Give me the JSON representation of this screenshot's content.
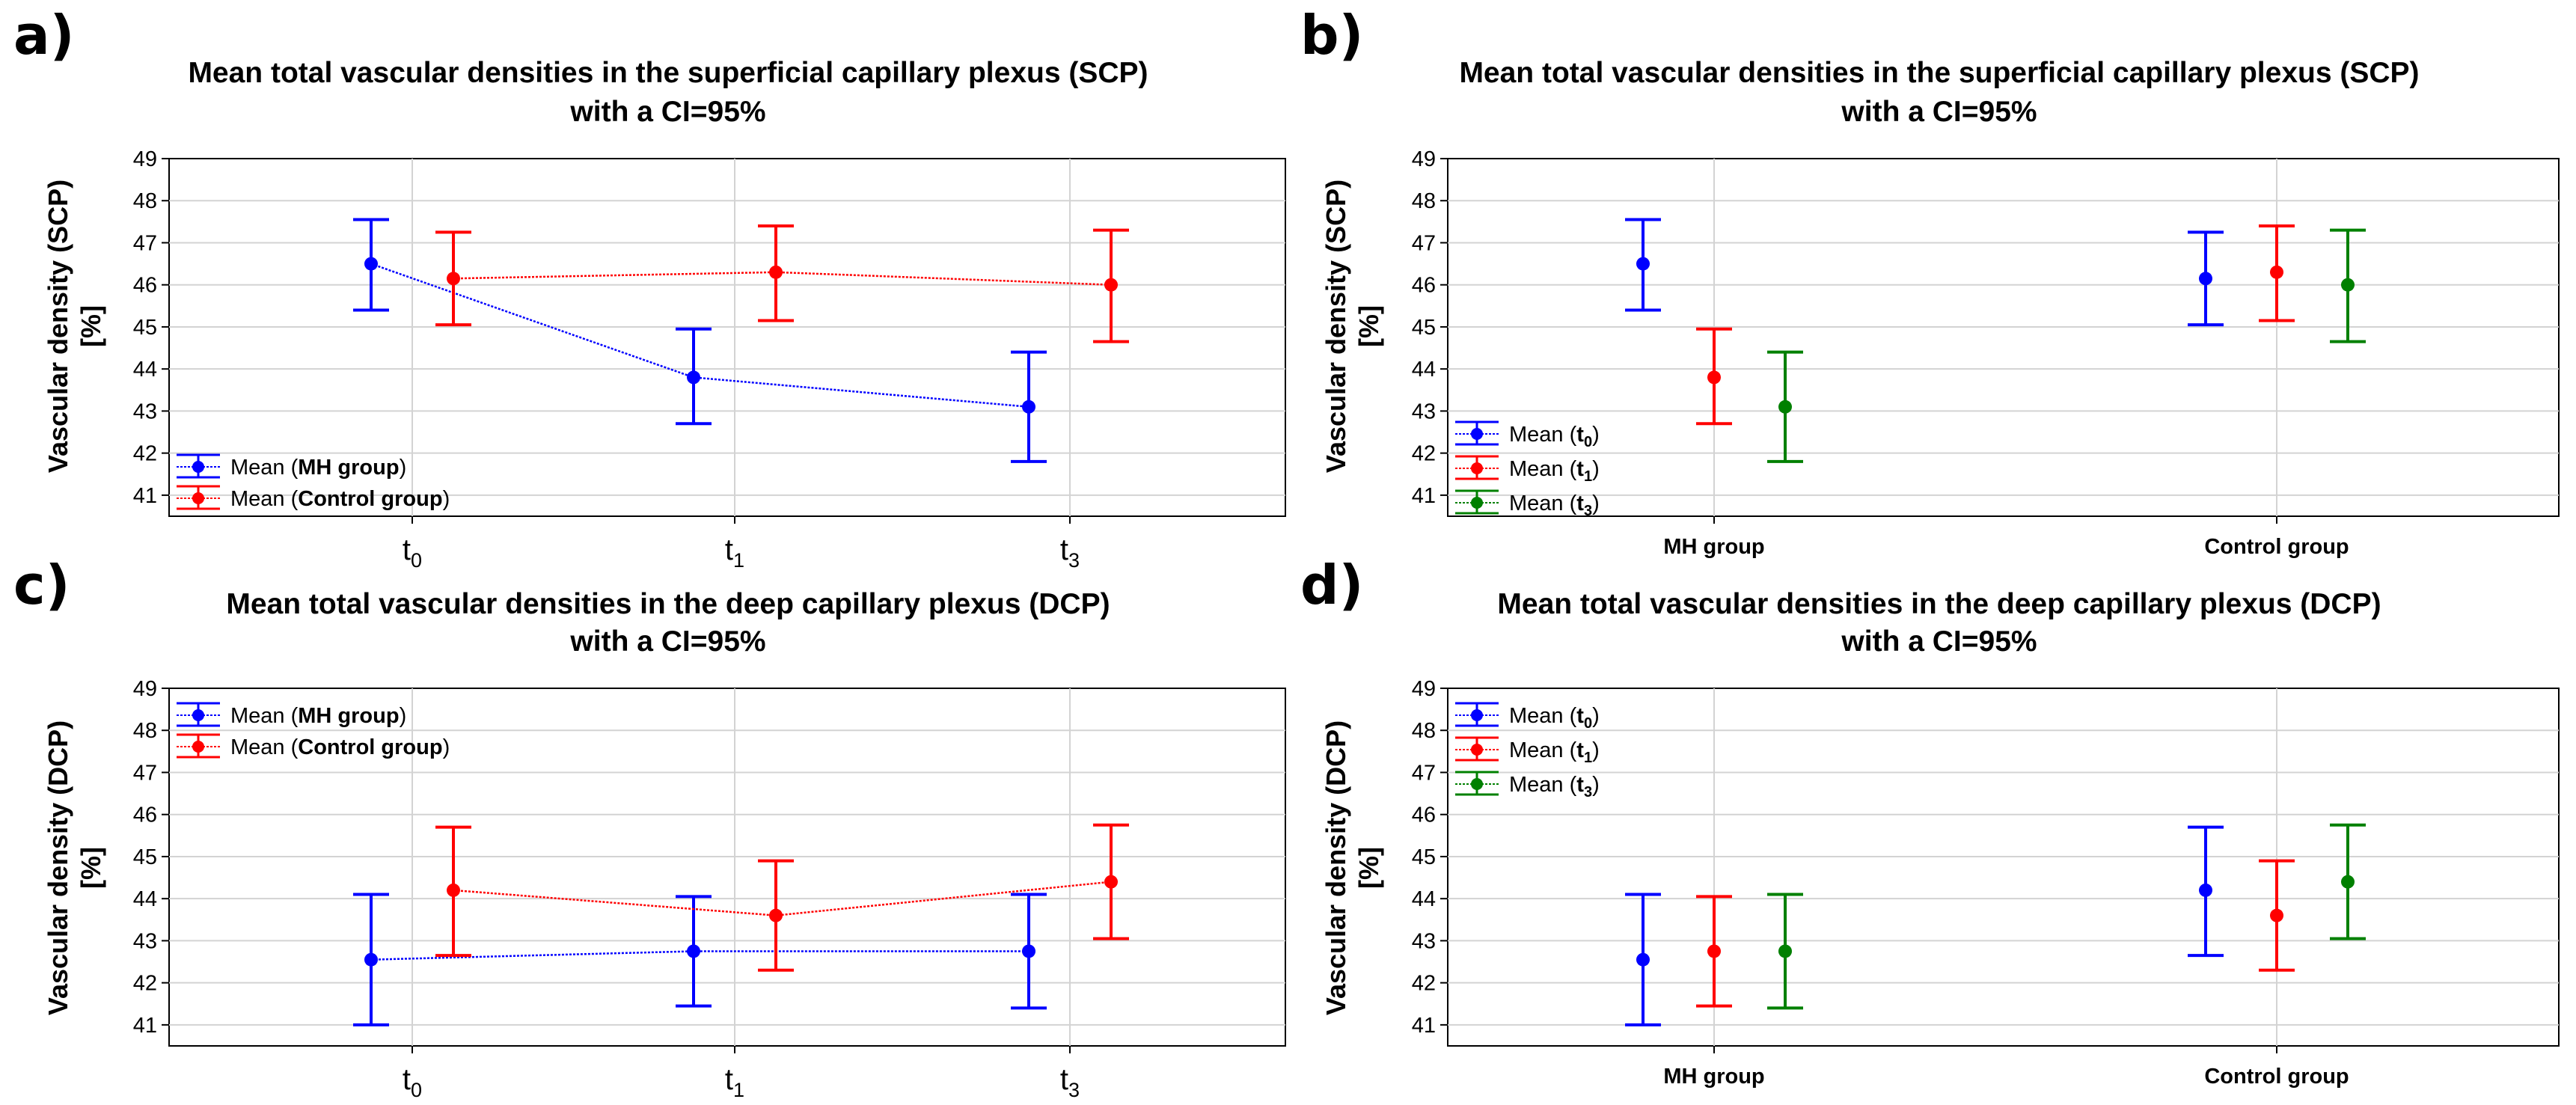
{
  "figure": {
    "panels": [
      {
        "id": "a",
        "letter": "a)",
        "title_line1": "Mean total vascular densities in the superficial capillary plexus (SCP)",
        "title_line2": "with a CI=95%",
        "ylabel_line1": "Vascular density (SCP)",
        "ylabel_line2": "[%]",
        "kind": "time",
        "ylim": [
          40.5,
          49
        ],
        "yticks": [
          41,
          42,
          43,
          44,
          45,
          46,
          47,
          48,
          49
        ],
        "xticks": [
          {
            "base": "t",
            "sub": "0"
          },
          {
            "base": "t",
            "sub": "1"
          },
          {
            "base": "t",
            "sub": "3"
          }
        ],
        "legend_position": "bottom-left",
        "series": [
          {
            "name": "Mean",
            "label": "MH group",
            "color": "#0000ff",
            "mean": [
              46.5,
              43.8,
              43.1
            ],
            "lower": [
              45.4,
              42.7,
              41.8
            ],
            "upper": [
              47.55,
              44.95,
              44.4
            ],
            "offset": -1
          },
          {
            "name": "Mean",
            "label": "Control group",
            "color": "#ff0000",
            "mean": [
              46.15,
              46.3,
              46.0
            ],
            "lower": [
              45.05,
              45.15,
              44.65
            ],
            "upper": [
              47.25,
              47.4,
              47.3
            ],
            "offset": 1
          }
        ]
      },
      {
        "id": "b",
        "letter": "b)",
        "title_line1": "Mean total vascular densities in the superficial capillary plexus (SCP)",
        "title_line2": "with a CI=95%",
        "ylabel_line1": "Vascular density (SCP)",
        "ylabel_line2": "[%]",
        "kind": "group",
        "ylim": [
          40.5,
          49
        ],
        "yticks": [
          41,
          42,
          43,
          44,
          45,
          46,
          47,
          48,
          49
        ],
        "categories": [
          "MH group",
          "Control group"
        ],
        "legend_position": "bottom-left",
        "series": [
          {
            "name": "Mean",
            "label": "t",
            "sub": "0",
            "color": "#0000ff",
            "mean": [
              46.5,
              46.15
            ],
            "lower": [
              45.4,
              45.05
            ],
            "upper": [
              47.55,
              47.25
            ],
            "offset": -1
          },
          {
            "name": "Mean",
            "label": "t",
            "sub": "1",
            "color": "#ff0000",
            "mean": [
              43.8,
              46.3
            ],
            "lower": [
              42.7,
              45.15
            ],
            "upper": [
              44.95,
              47.4
            ],
            "offset": 0
          },
          {
            "name": "Mean",
            "label": "t",
            "sub": "3",
            "color": "#008000",
            "mean": [
              43.1,
              46.0
            ],
            "lower": [
              41.8,
              44.65
            ],
            "upper": [
              44.4,
              47.3
            ],
            "offset": 1
          }
        ]
      },
      {
        "id": "c",
        "letter": "c)",
        "title_line1": "Mean total vascular densities in the deep capillary plexus (DCP)",
        "title_line2": "with a CI=95%",
        "ylabel_line1": "Vascular density (DCP)",
        "ylabel_line2": "[%]",
        "kind": "time",
        "ylim": [
          40.5,
          49
        ],
        "yticks": [
          41,
          42,
          43,
          44,
          45,
          46,
          47,
          48,
          49
        ],
        "xticks": [
          {
            "base": "t",
            "sub": "0"
          },
          {
            "base": "t",
            "sub": "1"
          },
          {
            "base": "t",
            "sub": "3"
          }
        ],
        "legend_position": "top-left",
        "series": [
          {
            "name": "Mean",
            "label": "MH group",
            "color": "#0000ff",
            "mean": [
              42.55,
              42.75,
              42.75
            ],
            "lower": [
              41.0,
              41.45,
              41.4
            ],
            "upper": [
              44.1,
              44.05,
              44.1
            ],
            "offset": -1
          },
          {
            "name": "Mean",
            "label": "Control group",
            "color": "#ff0000",
            "mean": [
              44.2,
              43.6,
              44.4
            ],
            "lower": [
              42.65,
              42.3,
              43.05
            ],
            "upper": [
              45.7,
              44.9,
              45.75
            ],
            "offset": 1
          }
        ]
      },
      {
        "id": "d",
        "letter": "d)",
        "title_line1": "Mean total vascular densities in the deep capillary plexus (DCP)",
        "title_line2": "with a CI=95%",
        "ylabel_line1": "Vascular density (DCP)",
        "ylabel_line2": "[%]",
        "kind": "group",
        "ylim": [
          40.5,
          49
        ],
        "yticks": [
          41,
          42,
          43,
          44,
          45,
          46,
          47,
          48,
          49
        ],
        "categories": [
          "MH group",
          "Control group"
        ],
        "legend_position": "top-left",
        "series": [
          {
            "name": "Mean",
            "label": "t",
            "sub": "0",
            "color": "#0000ff",
            "mean": [
              42.55,
              44.2
            ],
            "lower": [
              41.0,
              42.65
            ],
            "upper": [
              44.1,
              45.7
            ],
            "offset": -1
          },
          {
            "name": "Mean",
            "label": "t",
            "sub": "1",
            "color": "#ff0000",
            "mean": [
              42.75,
              43.6
            ],
            "lower": [
              41.45,
              42.3
            ],
            "upper": [
              44.05,
              44.9
            ],
            "offset": 0
          },
          {
            "name": "Mean",
            "label": "t",
            "sub": "3",
            "color": "#008000",
            "mean": [
              42.75,
              44.4
            ],
            "lower": [
              41.4,
              43.05
            ],
            "upper": [
              44.1,
              45.75
            ],
            "offset": 1
          }
        ]
      }
    ]
  },
  "chart_data": [
    {
      "type": "scatter",
      "subtype": "line-with-error-bars",
      "title": "Mean total vascular densities in the superficial capillary plexus (SCP) with a CI=95%",
      "xlabel": "",
      "ylabel": "Vascular density (SCP) [%]",
      "categories": [
        "t0",
        "t1",
        "t3"
      ],
      "ylim": [
        40.5,
        49
      ],
      "grid": true,
      "legend": "bottom-left",
      "series": [
        {
          "name": "Mean (MH group)",
          "values": [
            46.5,
            43.8,
            43.1
          ],
          "ci_lower": [
            45.4,
            42.7,
            41.8
          ],
          "ci_upper": [
            47.55,
            44.95,
            44.4
          ]
        },
        {
          "name": "Mean (Control group)",
          "values": [
            46.15,
            46.3,
            46.0
          ],
          "ci_lower": [
            45.05,
            45.15,
            44.65
          ],
          "ci_upper": [
            47.25,
            47.4,
            47.3
          ]
        }
      ]
    },
    {
      "type": "scatter",
      "subtype": "error-bars",
      "title": "Mean total vascular densities in the superficial capillary plexus (SCP) with a CI=95%",
      "xlabel": "",
      "ylabel": "Vascular density (SCP) [%]",
      "categories": [
        "MH group",
        "Control group"
      ],
      "ylim": [
        40.5,
        49
      ],
      "grid": true,
      "legend": "bottom-left",
      "series": [
        {
          "name": "Mean (t0)",
          "values": [
            46.5,
            46.15
          ],
          "ci_lower": [
            45.4,
            45.05
          ],
          "ci_upper": [
            47.55,
            47.25
          ]
        },
        {
          "name": "Mean (t1)",
          "values": [
            43.8,
            46.3
          ],
          "ci_lower": [
            42.7,
            45.15
          ],
          "ci_upper": [
            44.95,
            47.4
          ]
        },
        {
          "name": "Mean (t3)",
          "values": [
            43.1,
            46.0
          ],
          "ci_lower": [
            41.8,
            44.65
          ],
          "ci_upper": [
            44.4,
            47.3
          ]
        }
      ]
    },
    {
      "type": "scatter",
      "subtype": "line-with-error-bars",
      "title": "Mean total vascular densities in the deep capillary plexus (DCP) with a CI=95%",
      "xlabel": "",
      "ylabel": "Vascular density (DCP) [%]",
      "categories": [
        "t0",
        "t1",
        "t3"
      ],
      "ylim": [
        40.5,
        49
      ],
      "grid": true,
      "legend": "top-left",
      "series": [
        {
          "name": "Mean (MH group)",
          "values": [
            42.55,
            42.75,
            42.75
          ],
          "ci_lower": [
            41.0,
            41.45,
            41.4
          ],
          "ci_upper": [
            44.1,
            44.05,
            44.1
          ]
        },
        {
          "name": "Mean (Control group)",
          "values": [
            44.2,
            43.6,
            44.4
          ],
          "ci_lower": [
            42.65,
            42.3,
            43.05
          ],
          "ci_upper": [
            45.7,
            44.9,
            45.75
          ]
        }
      ]
    },
    {
      "type": "scatter",
      "subtype": "error-bars",
      "title": "Mean total vascular densities in the deep capillary plexus (DCP) with a CI=95%",
      "xlabel": "",
      "ylabel": "Vascular density (DCP) [%]",
      "categories": [
        "MH group",
        "Control group"
      ],
      "ylim": [
        40.5,
        49
      ],
      "grid": true,
      "legend": "top-left",
      "series": [
        {
          "name": "Mean (t0)",
          "values": [
            42.55,
            44.2
          ],
          "ci_lower": [
            41.0,
            42.65
          ],
          "ci_upper": [
            44.1,
            45.7
          ]
        },
        {
          "name": "Mean (t1)",
          "values": [
            42.75,
            43.6
          ],
          "ci_lower": [
            41.45,
            42.3
          ],
          "ci_upper": [
            44.05,
            44.9
          ]
        },
        {
          "name": "Mean (t3)",
          "values": [
            42.75,
            44.4
          ],
          "ci_lower": [
            41.4,
            43.05
          ],
          "ci_upper": [
            44.1,
            45.75
          ]
        }
      ]
    }
  ]
}
